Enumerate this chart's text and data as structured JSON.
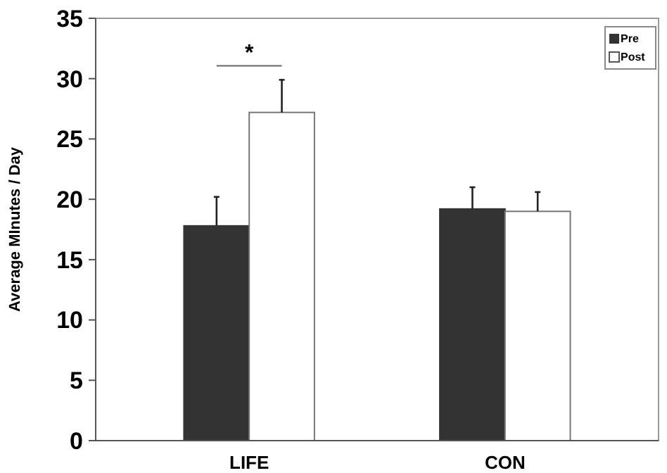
{
  "chart_data": {
    "type": "bar",
    "ylabel": "Average MInutes / Day",
    "categories": [
      "LIFE",
      "CON"
    ],
    "series": [
      {
        "name": "Pre",
        "color": "#333333",
        "values": [
          17.8,
          19.2
        ],
        "errors": [
          2.4,
          1.8
        ]
      },
      {
        "name": "Post",
        "color": "#ffffff",
        "values": [
          27.2,
          19.0
        ],
        "errors": [
          2.7,
          1.6
        ]
      }
    ],
    "ylim": [
      0,
      35
    ],
    "yticks": [
      0,
      5,
      10,
      15,
      20,
      25,
      30,
      35
    ],
    "grid": false,
    "legend": "top right",
    "annotations": [
      "*"
    ]
  }
}
